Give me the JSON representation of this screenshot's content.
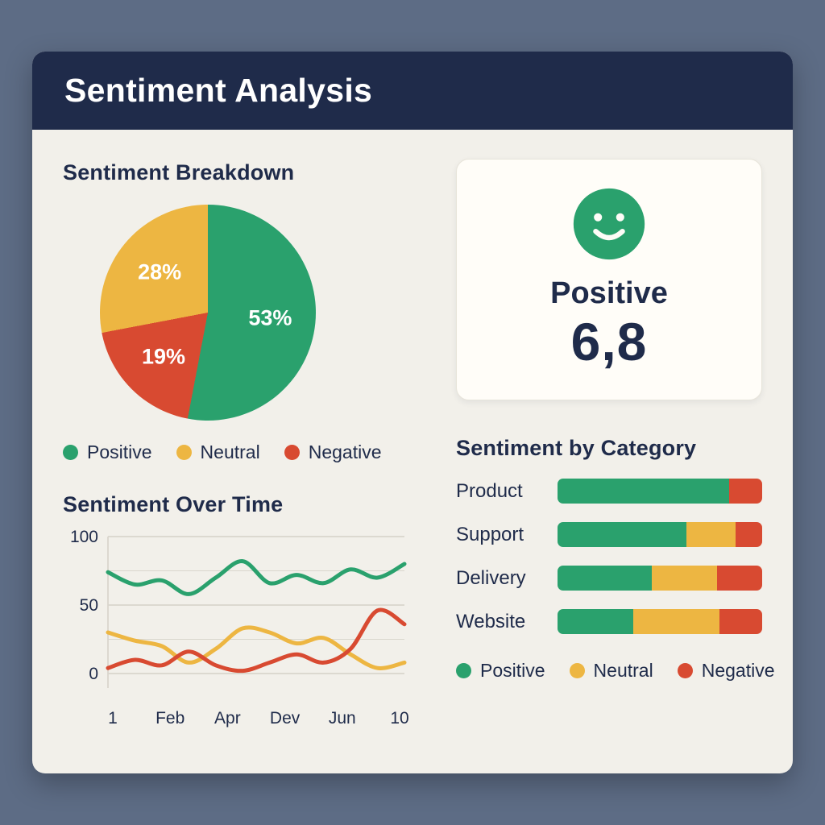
{
  "header": {
    "title": "Sentiment Analysis"
  },
  "colors": {
    "positive": "#2aa16d",
    "neutral": "#edb642",
    "negative": "#d84a31",
    "header_bg": "#1f2b4a",
    "card_bg": "#f2f0ea",
    "panel_bg": "#fffdf8",
    "text": "#1f2b4a",
    "grid": "#d9d6cd",
    "outer_bg": "#5d6c85"
  },
  "legend": {
    "items": [
      {
        "label": "Positive",
        "key": "positive"
      },
      {
        "label": "Neutral",
        "key": "neutral"
      },
      {
        "label": "Negative",
        "key": "negative"
      }
    ]
  },
  "score_card": {
    "icon": "smiley-face-icon",
    "label": "Positive",
    "value": "6,8"
  },
  "chart_data": [
    {
      "id": "breakdown",
      "type": "pie",
      "title": "Sentiment Breakdown",
      "labels": [
        "Positive",
        "Negative",
        "Neutral"
      ],
      "values": [
        53,
        19,
        28
      ],
      "value_labels": [
        "53%",
        "19%",
        "28%"
      ],
      "color_keys": [
        "positive",
        "negative",
        "neutral"
      ],
      "legend_position": "bottom"
    },
    {
      "id": "over_time",
      "type": "line",
      "title": "Sentiment Over Time",
      "x_tick_labels": [
        "1",
        "Feb",
        "Apr",
        "Dev",
        "Jun",
        "10"
      ],
      "y_ticks": [
        0,
        50,
        100
      ],
      "ylim": [
        0,
        100
      ],
      "grid": true,
      "series": [
        {
          "name": "Positive",
          "color_key": "positive",
          "values": [
            74,
            65,
            68,
            58,
            70,
            82,
            66,
            72,
            66,
            76,
            70,
            80
          ]
        },
        {
          "name": "Neutral",
          "color_key": "neutral",
          "values": [
            30,
            24,
            20,
            8,
            18,
            33,
            30,
            22,
            26,
            14,
            4,
            8
          ]
        },
        {
          "name": "Negative",
          "color_key": "negative",
          "values": [
            4,
            10,
            6,
            16,
            6,
            2,
            8,
            14,
            8,
            18,
            46,
            36
          ]
        }
      ]
    },
    {
      "id": "by_category",
      "type": "stacked_bar",
      "title": "Sentiment by Category",
      "categories": [
        "Product",
        "Support",
        "Delivery",
        "Website"
      ],
      "unit": "percent",
      "series": [
        {
          "name": "Positive",
          "color_key": "positive",
          "values": [
            84,
            63,
            46,
            37
          ]
        },
        {
          "name": "Neutral",
          "color_key": "neutral",
          "values": [
            0,
            24,
            32,
            42
          ]
        },
        {
          "name": "Negative",
          "color_key": "negative",
          "values": [
            16,
            13,
            22,
            21
          ]
        }
      ],
      "legend_position": "bottom"
    }
  ]
}
